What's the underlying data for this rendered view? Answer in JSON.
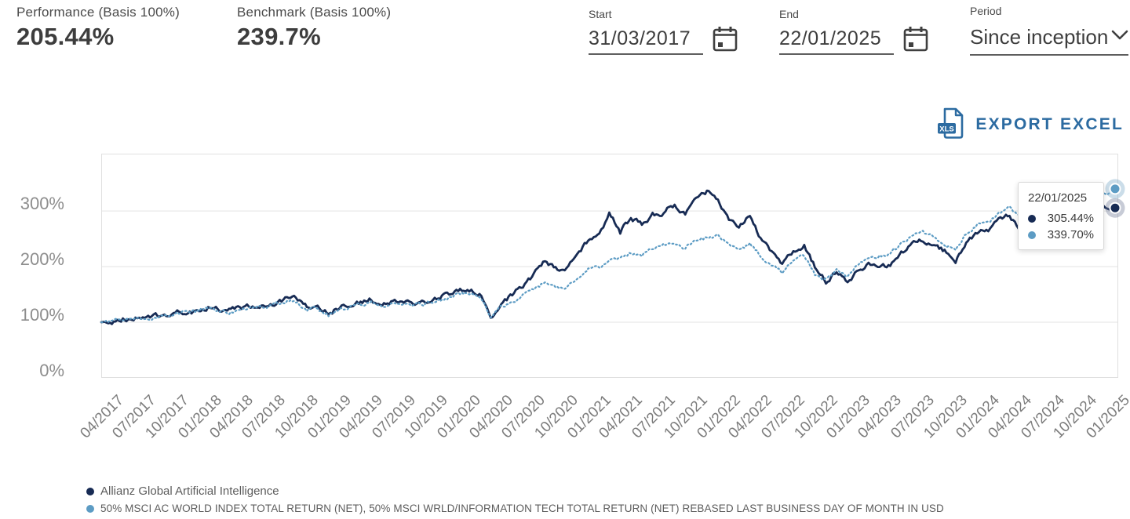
{
  "header": {
    "performance": {
      "label": "Performance (Basis 100%)",
      "value": "205.44%"
    },
    "benchmark": {
      "label": "Benchmark (Basis 100%)",
      "value": "239.7%"
    },
    "start": {
      "label": "Start",
      "value": "31/03/2017"
    },
    "end": {
      "label": "End",
      "value": "22/01/2025"
    },
    "period": {
      "label": "Period",
      "value": "Since inception"
    }
  },
  "toolbar": {
    "export_label": "EXPORT EXCEL",
    "export_icon": "xls-file-icon",
    "export_icon_badge_text": "XLS"
  },
  "tooltip": {
    "date": "22/01/2025",
    "rows": [
      {
        "series": "Allianz Global Artificial Intelligence",
        "value": "305.44%"
      },
      {
        "series": "Benchmark",
        "value": "339.70%"
      }
    ]
  },
  "colors": {
    "accent_blue": "#2c6ba1",
    "fund_line": "#172b54",
    "benchmark_line": "#5d9cc4",
    "grid": "#e3e3e3",
    "axis_text": "#8d8d8d",
    "text_dark": "#3d3d3d"
  },
  "chart_data": {
    "type": "line",
    "title": "",
    "xlabel": "",
    "ylabel": "",
    "start_date": "2017-03-31",
    "end_date": "2025-01-22",
    "ylim": [
      0,
      403
    ],
    "y_ticks": [
      0,
      100,
      200,
      300
    ],
    "y_tick_labels": [
      "0%",
      "100%",
      "200%",
      "300%"
    ],
    "grid": "horizontal",
    "legend_position": "bottom-left",
    "x_tick_labels": [
      "04/2017",
      "07/2017",
      "10/2017",
      "01/2018",
      "04/2018",
      "07/2018",
      "10/2018",
      "01/2019",
      "04/2019",
      "07/2019",
      "10/2019",
      "01/2020",
      "04/2020",
      "07/2020",
      "10/2020",
      "01/2021",
      "04/2021",
      "07/2021",
      "10/2021",
      "01/2022",
      "04/2022",
      "07/2022",
      "10/2022",
      "01/2023",
      "04/2023",
      "07/2023",
      "10/2023",
      "01/2024",
      "04/2024",
      "07/2024",
      "10/2024",
      "01/2025"
    ],
    "series": [
      {
        "name": "Allianz Global Artificial Intelligence",
        "color": "#172b54",
        "line_style": "solid",
        "end_value": 305.44,
        "monthly_values": [
          100,
          101,
          106,
          105,
          109,
          111,
          112,
          117,
          119,
          119,
          128,
          122,
          124,
          123,
          131,
          132,
          134,
          142,
          141,
          127,
          128,
          116,
          127,
          133,
          136,
          141,
          128,
          136,
          139,
          134,
          137,
          142,
          150,
          156,
          158,
          152,
          108,
          135,
          150,
          165,
          185,
          210,
          195,
          195,
          225,
          245,
          252,
          295,
          262,
          288,
          275,
          292,
          298,
          312,
          292,
          318,
          335,
          320,
          282,
          270,
          290,
          250,
          225,
          205,
          225,
          240,
          200,
          172,
          190,
          172,
          195,
          205,
          205,
          200,
          225,
          240,
          250,
          235,
          228,
          212,
          245,
          260,
          265,
          285,
          290,
          265,
          290,
          300,
          305,
          285,
          295,
          300,
          315,
          305,
          305.44
        ]
      },
      {
        "name": "50% MSCI AC WORLD INDEX TOTAL RETURN (NET), 50% MSCI WRLD/INFORMATION TECH TOTAL RETURN (NET) REBASED LAST BUSINESS DAY OF MONTH IN USD",
        "color": "#5d9cc4",
        "line_style": "dotted",
        "end_value": 339.7,
        "monthly_values": [
          100,
          101,
          105,
          104,
          108,
          110,
          111,
          116,
          118,
          121,
          127,
          120,
          118,
          120,
          127,
          128,
          131,
          138,
          138,
          124,
          125,
          113,
          122,
          128,
          131,
          136,
          125,
          133,
          136,
          131,
          133,
          137,
          143,
          150,
          152,
          148,
          112,
          128,
          138,
          148,
          158,
          172,
          165,
          162,
          182,
          200,
          200,
          212,
          213,
          225,
          222,
          232,
          238,
          245,
          235,
          248,
          252,
          255,
          240,
          230,
          242,
          220,
          205,
          190,
          210,
          218,
          185,
          178,
          195,
          182,
          205,
          210,
          220,
          222,
          240,
          255,
          265,
          252,
          240,
          228,
          258,
          275,
          280,
          295,
          305,
          285,
          305,
          318,
          325,
          305,
          315,
          320,
          335,
          330,
          339.7
        ]
      }
    ]
  },
  "legend": {
    "items": [
      {
        "label": "Allianz Global Artificial Intelligence",
        "color": "#172b54"
      },
      {
        "label": "50% MSCI AC WORLD INDEX TOTAL RETURN (NET), 50% MSCI WRLD/INFORMATION TECH TOTAL RETURN (NET) REBASED LAST BUSINESS DAY OF MONTH IN USD",
        "color": "#5d9cc4"
      }
    ]
  }
}
